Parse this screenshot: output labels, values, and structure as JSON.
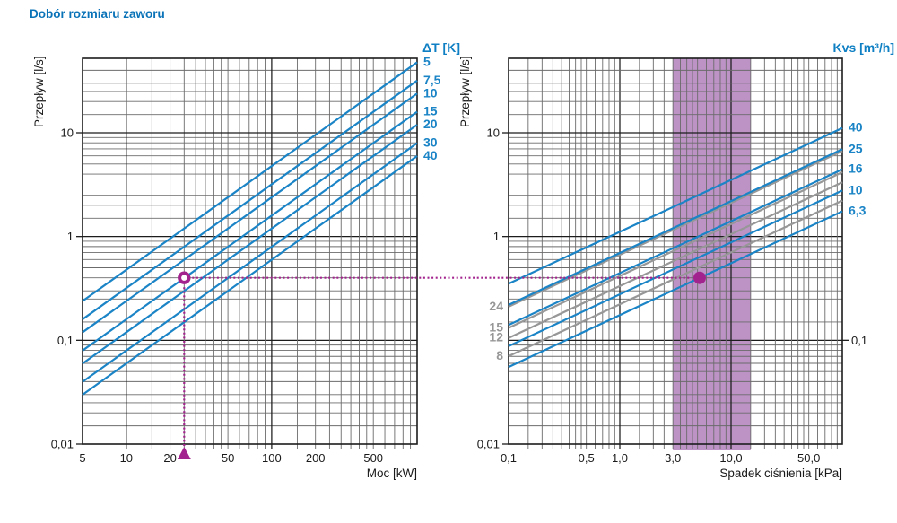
{
  "title": "Dobór rozmiaru zaworu",
  "colors": {
    "accent_blue": "#0e7fc3",
    "line_blue": "#1a84c6",
    "gray_series": "#979797",
    "grid_major": "#1c1c1c",
    "grid_minor": "#6b6b6b",
    "selection_purple": "#a3238e",
    "band_fill": "#bd93c6",
    "text": "#1a1a1a"
  },
  "selection": {
    "power_kw": 25,
    "flow_ls": 0.4,
    "pressure_drop_kpa": 5.22
  },
  "chart_data": [
    {
      "type": "line",
      "name": "power-flow-chart",
      "xscale": "log",
      "yscale": "log",
      "xlabel": "Moc [kW]",
      "ylabel": "Przepływ [l/s]",
      "xlim": [
        5,
        1000
      ],
      "ylim": [
        0.01,
        52.2
      ],
      "x_grid_min": 10,
      "x_ticks": [
        {
          "v": 5,
          "label": "5"
        },
        {
          "v": 10,
          "label": "10"
        },
        {
          "v": 20,
          "label": "20"
        },
        {
          "v": 50,
          "label": "50"
        },
        {
          "v": 100,
          "label": "100"
        },
        {
          "v": 200,
          "label": "200"
        },
        {
          "v": 500,
          "label": "500"
        }
      ],
      "y_ticks": [
        {
          "v": 10,
          "label": "10",
          "side": "left"
        },
        {
          "v": 1,
          "label": "1",
          "side": "left"
        },
        {
          "v": 0.1,
          "label": "0,1",
          "side": "left"
        },
        {
          "v": 0.01,
          "label": "0,01",
          "side": "left"
        }
      ],
      "series_header": "ΔT [K]",
      "series": [
        {
          "label": "5",
          "value": 5,
          "color": "blue",
          "label_side": "right",
          "x": [
            5,
            1000
          ],
          "y": [
            0.2389,
            47.78
          ]
        },
        {
          "label": "7,5",
          "value": 7.5,
          "color": "blue",
          "label_side": "right",
          "x": [
            5,
            1000
          ],
          "y": [
            0.1593,
            31.85
          ]
        },
        {
          "label": "10",
          "value": 10,
          "color": "blue",
          "label_side": "right",
          "x": [
            5,
            1000
          ],
          "y": [
            0.1194,
            23.89
          ]
        },
        {
          "label": "15",
          "value": 15,
          "color": "blue",
          "label_side": "right",
          "x": [
            5,
            1000
          ],
          "y": [
            0.0796,
            15.93
          ]
        },
        {
          "label": "20",
          "value": 20,
          "color": "blue",
          "label_side": "right",
          "x": [
            5,
            1000
          ],
          "y": [
            0.0597,
            11.94
          ]
        },
        {
          "label": "30",
          "value": 30,
          "color": "blue",
          "label_side": "right",
          "x": [
            5,
            1000
          ],
          "y": [
            0.0398,
            7.96
          ]
        },
        {
          "label": "40",
          "value": 40,
          "color": "blue",
          "label_side": "right",
          "x": [
            5,
            1000
          ],
          "y": [
            0.0299,
            5.97
          ]
        }
      ],
      "selected_point": {
        "x": 25,
        "y": 0.4
      }
    },
    {
      "type": "line",
      "name": "pressure-drop-chart",
      "xscale": "log",
      "yscale": "log",
      "xlabel": "Spadek ciśnienia [kPa]",
      "ylabel": "Przepływ [l/s]",
      "xlim": [
        0.1,
        100
      ],
      "ylim": [
        0.01,
        52.2
      ],
      "band": {
        "from": 3,
        "to": 15
      },
      "x_ticks": [
        {
          "v": 0.1,
          "label": "0,1"
        },
        {
          "v": 0.5,
          "label": "0,5"
        },
        {
          "v": 1,
          "label": "1,0"
        },
        {
          "v": 3,
          "label": "3,0"
        },
        {
          "v": 10,
          "label": "10,0"
        },
        {
          "v": 50,
          "label": "50,0"
        }
      ],
      "y_ticks": [
        {
          "v": 10,
          "label": "10",
          "side": "left"
        },
        {
          "v": 1,
          "label": "1",
          "side": "left"
        },
        {
          "v": 0.1,
          "label": "0,1",
          "side": "right"
        },
        {
          "v": 0.01,
          "label": "0,01",
          "side": "left"
        }
      ],
      "series_header": "Kvs [m³/h]",
      "series": [
        {
          "label": "40",
          "value": 40,
          "color": "blue",
          "label_side": "right",
          "x": [
            0.1,
            100
          ],
          "y": [
            0.3514,
            11.111
          ]
        },
        {
          "label": "25",
          "value": 25,
          "color": "blue",
          "label_side": "right",
          "x": [
            0.1,
            100
          ],
          "y": [
            0.2196,
            6.944
          ]
        },
        {
          "label": "24",
          "value": 24,
          "color": "gray",
          "label_side": "left",
          "x": [
            0.1,
            100
          ],
          "y": [
            0.2108,
            6.667
          ]
        },
        {
          "label": "16",
          "value": 16,
          "color": "blue",
          "label_side": "right",
          "x": [
            0.1,
            100
          ],
          "y": [
            0.1405,
            4.444
          ]
        },
        {
          "label": "15",
          "value": 15,
          "color": "gray",
          "label_side": "left",
          "x": [
            0.1,
            100
          ],
          "y": [
            0.1318,
            4.167
          ]
        },
        {
          "label": "12",
          "value": 12,
          "color": "gray",
          "label_side": "left",
          "x": [
            0.1,
            100
          ],
          "y": [
            0.1054,
            3.333
          ]
        },
        {
          "label": "10",
          "value": 10,
          "color": "blue",
          "label_side": "right",
          "x": [
            0.1,
            100
          ],
          "y": [
            0.0878,
            2.778
          ]
        },
        {
          "label": "8",
          "value": 8,
          "color": "gray",
          "label_side": "left",
          "x": [
            0.1,
            100
          ],
          "y": [
            0.0703,
            2.222
          ]
        },
        {
          "label": "6,3",
          "value": 6.3,
          "color": "blue",
          "label_side": "right",
          "x": [
            0.1,
            100
          ],
          "y": [
            0.0553,
            1.75
          ]
        }
      ],
      "selected_point": {
        "x": 5.22,
        "y": 0.4
      }
    }
  ]
}
